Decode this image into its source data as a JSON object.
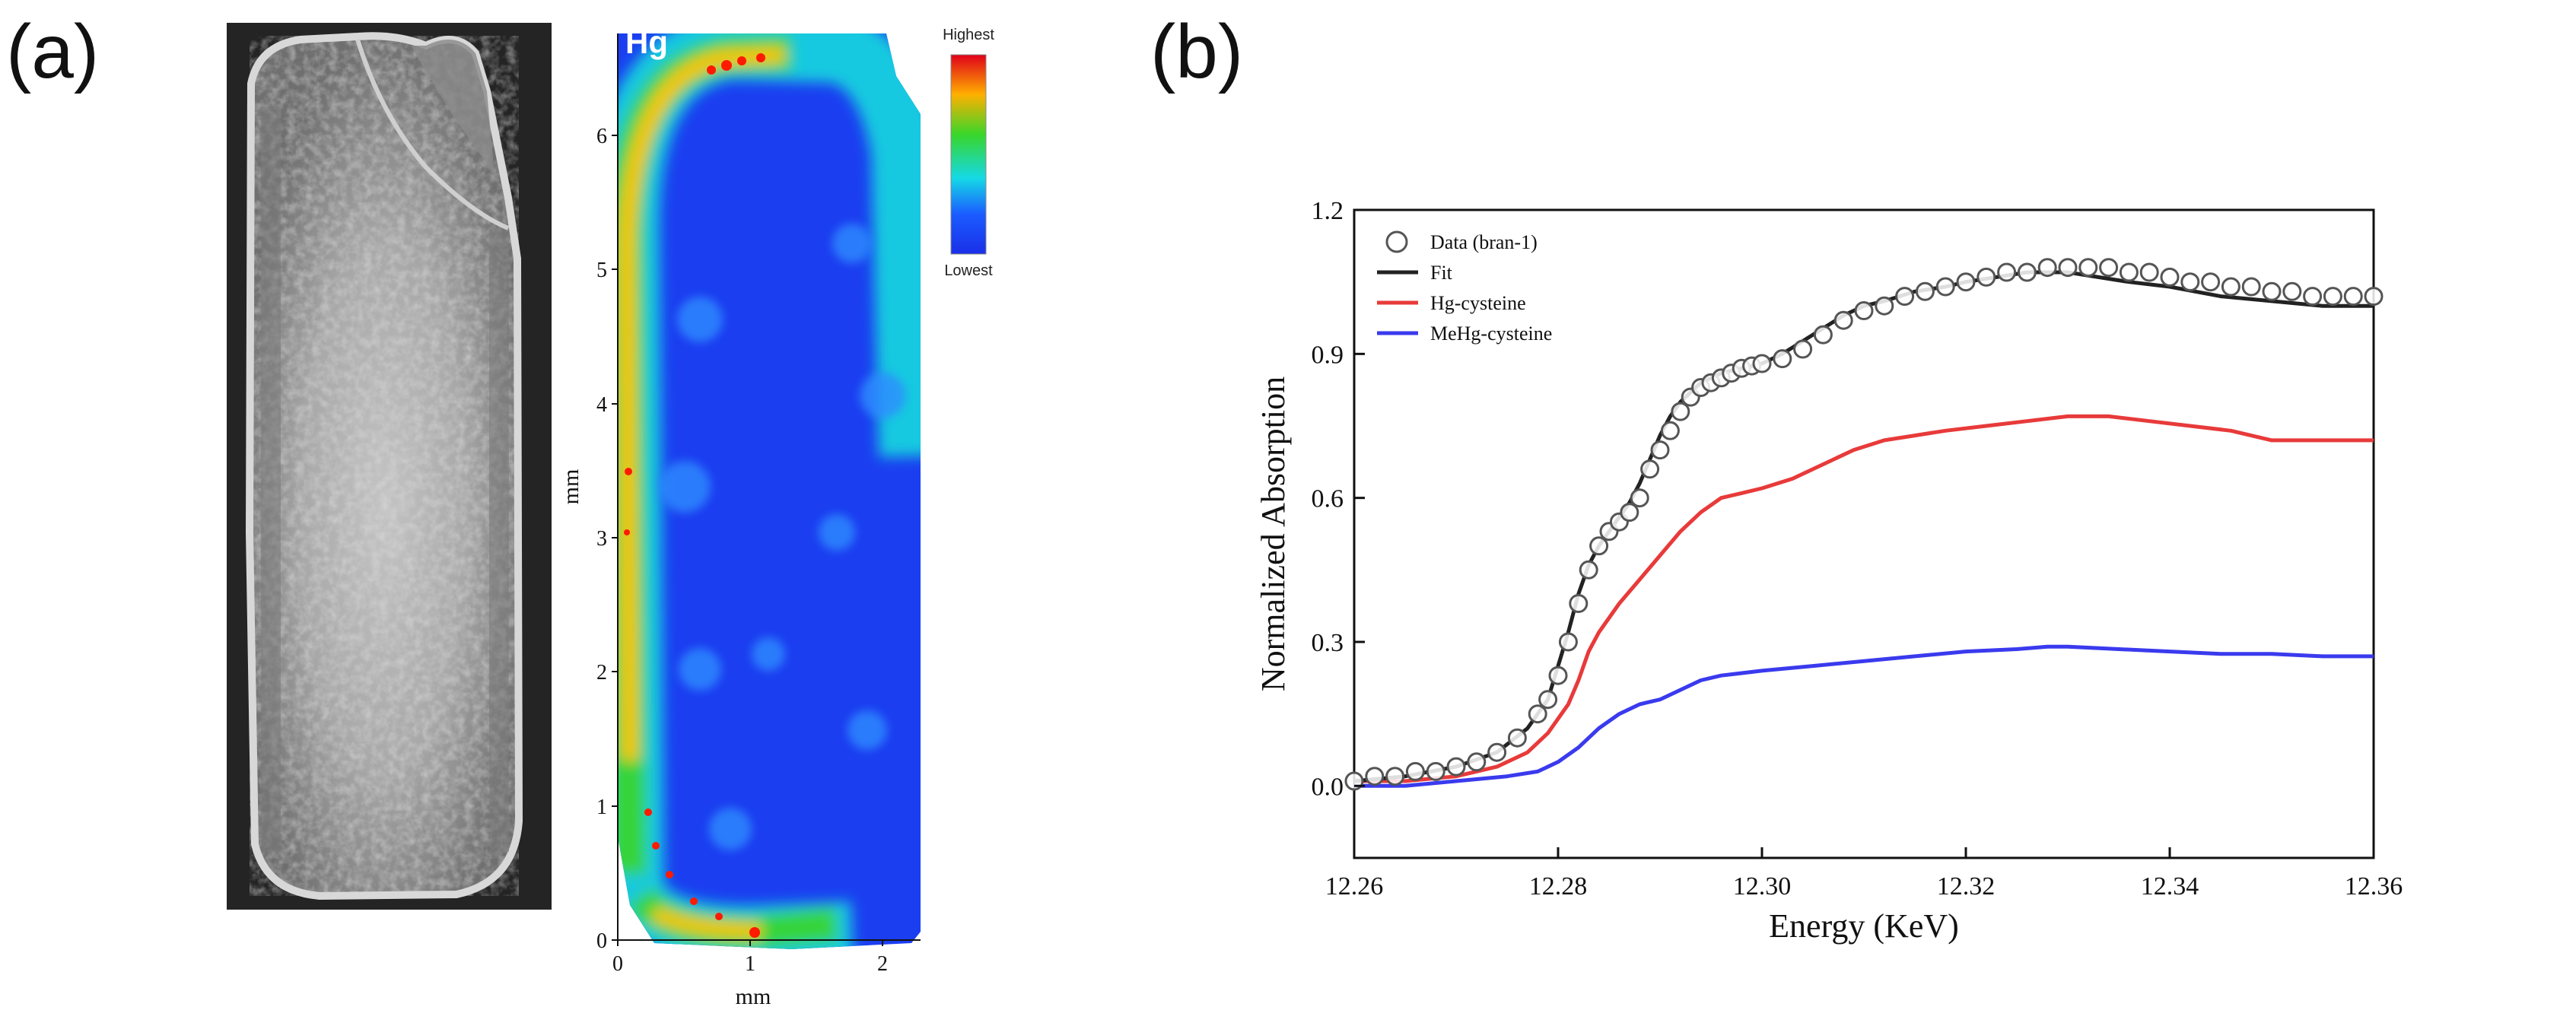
{
  "panel_a": {
    "label": "(a)",
    "element_label": "Hg",
    "colorbar": {
      "high": "Highest",
      "low": "Lowest"
    },
    "axes": {
      "xlabel": "mm",
      "ylabel": "mm",
      "xticks": [
        "0",
        "1",
        "2"
      ],
      "yticks": [
        "0",
        "1",
        "2",
        "3",
        "4",
        "5",
        "6"
      ]
    },
    "colors": {
      "low": "#1a3cff",
      "mid": "#22dd44",
      "high": "#ff1a00",
      "seed_bg": "#2b2b2b"
    }
  },
  "panel_b": {
    "label": "(b)"
  },
  "chart_data": {
    "type": "line",
    "title": "",
    "xlabel": "Energy (KeV)",
    "ylabel": "Normalized Absorption",
    "xlim": [
      12.26,
      12.36
    ],
    "ylim": [
      -0.15,
      1.2
    ],
    "xticks": [
      "12.26",
      "12.28",
      "12.30",
      "12.32",
      "12.34",
      "12.36"
    ],
    "yticks": [
      "0.0",
      "0.3",
      "0.6",
      "0.9",
      "1.2"
    ],
    "legend_position": "top-left",
    "series": [
      {
        "name": "Data (bran-1)",
        "style": "open-circle",
        "color": "#555555",
        "x": [
          12.26,
          12.262,
          12.264,
          12.266,
          12.268,
          12.27,
          12.272,
          12.274,
          12.276,
          12.278,
          12.279,
          12.28,
          12.281,
          12.282,
          12.283,
          12.284,
          12.285,
          12.286,
          12.287,
          12.288,
          12.289,
          12.29,
          12.291,
          12.292,
          12.293,
          12.294,
          12.295,
          12.296,
          12.297,
          12.298,
          12.299,
          12.3,
          12.302,
          12.304,
          12.306,
          12.308,
          12.31,
          12.312,
          12.314,
          12.316,
          12.318,
          12.32,
          12.322,
          12.324,
          12.326,
          12.328,
          12.33,
          12.332,
          12.334,
          12.336,
          12.338,
          12.34,
          12.342,
          12.344,
          12.346,
          12.348,
          12.35,
          12.352,
          12.354,
          12.356,
          12.358,
          12.36
        ],
        "values": [
          0.01,
          0.02,
          0.02,
          0.03,
          0.03,
          0.04,
          0.05,
          0.07,
          0.1,
          0.15,
          0.18,
          0.23,
          0.3,
          0.38,
          0.45,
          0.5,
          0.53,
          0.55,
          0.57,
          0.6,
          0.66,
          0.7,
          0.74,
          0.78,
          0.81,
          0.83,
          0.84,
          0.85,
          0.86,
          0.87,
          0.875,
          0.88,
          0.89,
          0.91,
          0.94,
          0.97,
          0.99,
          1.0,
          1.02,
          1.03,
          1.04,
          1.05,
          1.06,
          1.07,
          1.07,
          1.08,
          1.08,
          1.08,
          1.08,
          1.07,
          1.07,
          1.06,
          1.05,
          1.05,
          1.04,
          1.04,
          1.03,
          1.03,
          1.02,
          1.02,
          1.02,
          1.02
        ]
      },
      {
        "name": "Fit",
        "style": "line",
        "color": "#222222",
        "x": [
          12.26,
          12.265,
          12.27,
          12.274,
          12.277,
          12.279,
          12.28,
          12.281,
          12.282,
          12.283,
          12.284,
          12.285,
          12.286,
          12.287,
          12.288,
          12.289,
          12.29,
          12.291,
          12.292,
          12.293,
          12.294,
          12.296,
          12.298,
          12.3,
          12.302,
          12.305,
          12.308,
          12.31,
          12.312,
          12.315,
          12.318,
          12.32,
          12.323,
          12.326,
          12.328,
          12.33,
          12.333,
          12.336,
          12.34,
          12.345,
          12.35,
          12.355,
          12.36
        ],
        "values": [
          0.01,
          0.02,
          0.04,
          0.07,
          0.12,
          0.18,
          0.25,
          0.32,
          0.4,
          0.46,
          0.5,
          0.53,
          0.56,
          0.59,
          0.63,
          0.68,
          0.73,
          0.77,
          0.8,
          0.82,
          0.84,
          0.86,
          0.87,
          0.88,
          0.9,
          0.94,
          0.98,
          1.0,
          1.01,
          1.03,
          1.04,
          1.05,
          1.06,
          1.07,
          1.07,
          1.07,
          1.06,
          1.05,
          1.04,
          1.02,
          1.01,
          1.0,
          1.0
        ]
      },
      {
        "name": "Hg-cysteine",
        "style": "line",
        "color": "#e83a3a",
        "x": [
          12.26,
          12.265,
          12.27,
          12.274,
          12.277,
          12.279,
          12.281,
          12.282,
          12.283,
          12.284,
          12.286,
          12.288,
          12.29,
          12.292,
          12.294,
          12.296,
          12.298,
          12.3,
          12.303,
          12.306,
          12.309,
          12.312,
          12.315,
          12.318,
          12.322,
          12.326,
          12.33,
          12.334,
          12.338,
          12.342,
          12.346,
          12.35,
          12.355,
          12.36
        ],
        "values": [
          0.01,
          0.01,
          0.02,
          0.04,
          0.07,
          0.11,
          0.17,
          0.22,
          0.28,
          0.32,
          0.38,
          0.43,
          0.48,
          0.53,
          0.57,
          0.6,
          0.61,
          0.62,
          0.64,
          0.67,
          0.7,
          0.72,
          0.73,
          0.74,
          0.75,
          0.76,
          0.77,
          0.77,
          0.76,
          0.75,
          0.74,
          0.72,
          0.72,
          0.72
        ]
      },
      {
        "name": "MeHg-cysteine",
        "style": "line",
        "color": "#3a3aee",
        "x": [
          12.26,
          12.265,
          12.27,
          12.275,
          12.278,
          12.28,
          12.282,
          12.283,
          12.284,
          12.286,
          12.288,
          12.29,
          12.292,
          12.294,
          12.296,
          12.3,
          12.305,
          12.31,
          12.315,
          12.32,
          12.325,
          12.328,
          12.33,
          12.335,
          12.34,
          12.345,
          12.35,
          12.355,
          12.36
        ],
        "values": [
          0.0,
          0.0,
          0.01,
          0.02,
          0.03,
          0.05,
          0.08,
          0.1,
          0.12,
          0.15,
          0.17,
          0.18,
          0.2,
          0.22,
          0.23,
          0.24,
          0.25,
          0.26,
          0.27,
          0.28,
          0.285,
          0.29,
          0.29,
          0.285,
          0.28,
          0.275,
          0.275,
          0.27,
          0.27
        ]
      }
    ]
  }
}
